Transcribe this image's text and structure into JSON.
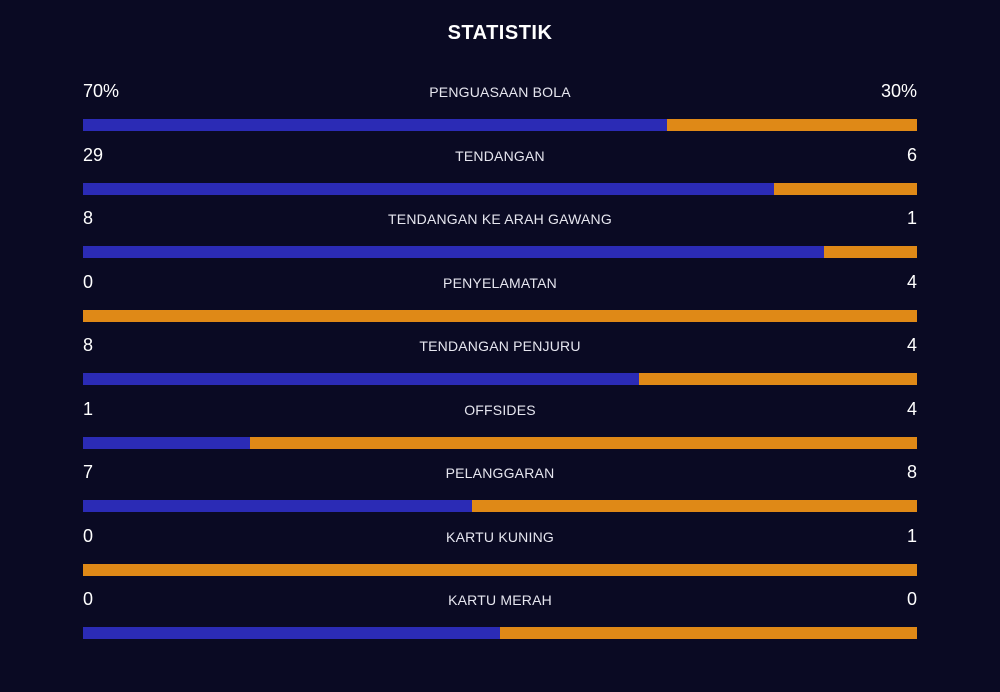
{
  "title": "STATISTIK",
  "colors": {
    "background": "#0a0a23",
    "home": "#2b2bb5",
    "away": "#df8917"
  },
  "stats": [
    {
      "label": "PENGUASAAN BOLA",
      "home": "70%",
      "away": "30%",
      "home_share": 0.7
    },
    {
      "label": "TENDANGAN",
      "home": "29",
      "away": "6",
      "home_share": 0.8286
    },
    {
      "label": "TENDANGAN KE ARAH GAWANG",
      "home": "8",
      "away": "1",
      "home_share": 0.8889
    },
    {
      "label": "PENYELAMATAN",
      "home": "0",
      "away": "4",
      "home_share": 0.0
    },
    {
      "label": "TENDANGAN PENJURU",
      "home": "8",
      "away": "4",
      "home_share": 0.6667
    },
    {
      "label": "OFFSIDES",
      "home": "1",
      "away": "4",
      "home_share": 0.2
    },
    {
      "label": "PELANGGARAN",
      "home": "7",
      "away": "8",
      "home_share": 0.4667
    },
    {
      "label": "KARTU KUNING",
      "home": "0",
      "away": "1",
      "home_share": 0.0
    },
    {
      "label": "KARTU MERAH",
      "home": "0",
      "away": "0",
      "home_share": 0.5
    }
  ]
}
